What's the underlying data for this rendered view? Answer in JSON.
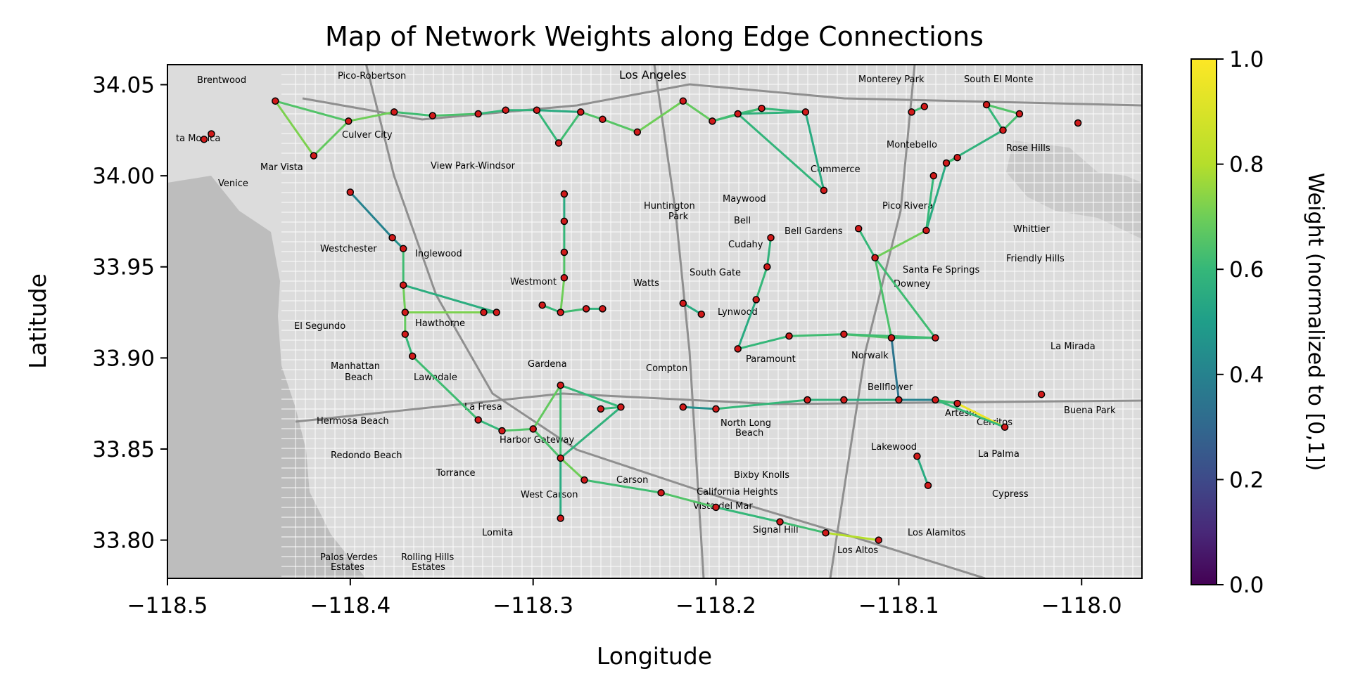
{
  "chart_data": {
    "type": "map",
    "title": "Map of Network Weights along Edge Connections",
    "xlabel": "Longitude",
    "ylabel": "Latitude",
    "xlim": [
      -118.5,
      -117.967
    ],
    "ylim": [
      33.779,
      34.061
    ],
    "xticks": [
      -118.5,
      -118.4,
      -118.3,
      -118.2,
      -118.1,
      -118.0
    ],
    "xtick_labels": [
      "−118.5",
      "−118.4",
      "−118.3",
      "−118.2",
      "−118.1",
      "−118.0"
    ],
    "yticks": [
      33.8,
      33.85,
      33.9,
      33.95,
      34.0,
      34.05
    ],
    "ytick_labels": [
      "33.80",
      "33.85",
      "33.90",
      "33.95",
      "34.00",
      "34.05"
    ],
    "colorbar": {
      "label": "Weight (normalized to [0,1])",
      "colormap": "viridis",
      "range": [
        0,
        1
      ],
      "ticks": [
        0.0,
        0.2,
        0.4,
        0.6,
        0.8,
        1.0
      ],
      "tick_labels": [
        "0.0",
        "0.2",
        "0.4",
        "0.6",
        "0.8",
        "1.0"
      ]
    },
    "nodes": [
      [
        -118.441,
        34.041
      ],
      [
        -118.42,
        34.011
      ],
      [
        -118.401,
        34.03
      ],
      [
        -118.376,
        34.035
      ],
      [
        -118.355,
        34.033
      ],
      [
        -118.33,
        34.034
      ],
      [
        -118.315,
        34.036
      ],
      [
        -118.298,
        34.036
      ],
      [
        -118.274,
        34.035
      ],
      [
        -118.286,
        34.018
      ],
      [
        -118.262,
        34.031
      ],
      [
        -118.243,
        34.024
      ],
      [
        -118.218,
        34.041
      ],
      [
        -118.202,
        34.03
      ],
      [
        -118.188,
        34.034
      ],
      [
        -118.175,
        34.037
      ],
      [
        -118.151,
        34.035
      ],
      [
        -118.141,
        33.992
      ],
      [
        -118.093,
        34.035
      ],
      [
        -118.086,
        34.038
      ],
      [
        -118.052,
        34.039
      ],
      [
        -118.034,
        34.034
      ],
      [
        -118.043,
        34.025
      ],
      [
        -118.002,
        34.029
      ],
      [
        -118.476,
        34.023
      ],
      [
        -118.48,
        34.02
      ],
      [
        -118.4,
        33.991
      ],
      [
        -118.377,
        33.966
      ],
      [
        -118.371,
        33.96
      ],
      [
        -118.371,
        33.94
      ],
      [
        -118.37,
        33.925
      ],
      [
        -118.37,
        33.913
      ],
      [
        -118.366,
        33.901
      ],
      [
        -118.32,
        33.925
      ],
      [
        -118.327,
        33.925
      ],
      [
        -118.295,
        33.929
      ],
      [
        -118.285,
        33.925
      ],
      [
        -118.271,
        33.927
      ],
      [
        -118.262,
        33.927
      ],
      [
        -118.283,
        33.99
      ],
      [
        -118.283,
        33.975
      ],
      [
        -118.283,
        33.958
      ],
      [
        -118.283,
        33.944
      ],
      [
        -118.218,
        33.93
      ],
      [
        -118.208,
        33.924
      ],
      [
        -118.33,
        33.866
      ],
      [
        -118.317,
        33.86
      ],
      [
        -118.3,
        33.861
      ],
      [
        -118.285,
        33.885
      ],
      [
        -118.285,
        33.845
      ],
      [
        -118.285,
        33.812
      ],
      [
        -118.252,
        33.873
      ],
      [
        -118.263,
        33.872
      ],
      [
        -118.218,
        33.873
      ],
      [
        -118.2,
        33.872
      ],
      [
        -118.15,
        33.877
      ],
      [
        -118.13,
        33.877
      ],
      [
        -118.1,
        33.877
      ],
      [
        -118.08,
        33.877
      ],
      [
        -118.068,
        33.875
      ],
      [
        -118.042,
        33.862
      ],
      [
        -118.022,
        33.88
      ],
      [
        -118.09,
        33.846
      ],
      [
        -118.084,
        33.83
      ],
      [
        -118.272,
        33.833
      ],
      [
        -118.23,
        33.826
      ],
      [
        -118.2,
        33.818
      ],
      [
        -118.165,
        33.81
      ],
      [
        -118.14,
        33.804
      ],
      [
        -118.111,
        33.8
      ],
      [
        -118.188,
        33.905
      ],
      [
        -118.16,
        33.912
      ],
      [
        -118.13,
        33.913
      ],
      [
        -118.104,
        33.911
      ],
      [
        -118.08,
        33.911
      ],
      [
        -118.17,
        33.966
      ],
      [
        -118.172,
        33.95
      ],
      [
        -118.178,
        33.932
      ],
      [
        -118.122,
        33.971
      ],
      [
        -118.113,
        33.955
      ],
      [
        -118.085,
        33.97
      ],
      [
        -118.074,
        34.007
      ],
      [
        -118.068,
        34.01
      ],
      [
        -118.081,
        34.0
      ]
    ],
    "edges": [
      {
        "from": 0,
        "to": 1,
        "weight": 0.72
      },
      {
        "from": 0,
        "to": 2,
        "weight": 0.65
      },
      {
        "from": 1,
        "to": 2,
        "weight": 0.68
      },
      {
        "from": 2,
        "to": 3,
        "weight": 0.7
      },
      {
        "from": 3,
        "to": 4,
        "weight": 0.62
      },
      {
        "from": 4,
        "to": 5,
        "weight": 0.64
      },
      {
        "from": 5,
        "to": 6,
        "weight": 0.6
      },
      {
        "from": 6,
        "to": 7,
        "weight": 0.58
      },
      {
        "from": 7,
        "to": 8,
        "weight": 0.55
      },
      {
        "from": 7,
        "to": 9,
        "weight": 0.6
      },
      {
        "from": 8,
        "to": 9,
        "weight": 0.62
      },
      {
        "from": 8,
        "to": 10,
        "weight": 0.65
      },
      {
        "from": 10,
        "to": 11,
        "weight": 0.66
      },
      {
        "from": 11,
        "to": 12,
        "weight": 0.7
      },
      {
        "from": 12,
        "to": 13,
        "weight": 0.68
      },
      {
        "from": 13,
        "to": 14,
        "weight": 0.63
      },
      {
        "from": 14,
        "to": 15,
        "weight": 0.61
      },
      {
        "from": 15,
        "to": 16,
        "weight": 0.6
      },
      {
        "from": 13,
        "to": 15,
        "weight": 0.62
      },
      {
        "from": 14,
        "to": 16,
        "weight": 0.58
      },
      {
        "from": 16,
        "to": 17,
        "weight": 0.55
      },
      {
        "from": 14,
        "to": 17,
        "weight": 0.59
      },
      {
        "from": 18,
        "to": 19,
        "weight": 0.62
      },
      {
        "from": 20,
        "to": 21,
        "weight": 0.65
      },
      {
        "from": 20,
        "to": 22,
        "weight": 0.6
      },
      {
        "from": 21,
        "to": 22,
        "weight": 0.63
      },
      {
        "from": 22,
        "to": 81,
        "weight": 0.58
      },
      {
        "from": 81,
        "to": 82,
        "weight": 0.62
      },
      {
        "from": 81,
        "to": 80,
        "weight": 0.55
      },
      {
        "from": 80,
        "to": 83,
        "weight": 0.6
      },
      {
        "from": 26,
        "to": 27,
        "weight": 0.4
      },
      {
        "from": 27,
        "to": 28,
        "weight": 0.45
      },
      {
        "from": 28,
        "to": 29,
        "weight": 0.62
      },
      {
        "from": 29,
        "to": 30,
        "weight": 0.7
      },
      {
        "from": 30,
        "to": 31,
        "weight": 0.68
      },
      {
        "from": 31,
        "to": 32,
        "weight": 0.6
      },
      {
        "from": 29,
        "to": 33,
        "weight": 0.56
      },
      {
        "from": 30,
        "to": 33,
        "weight": 0.6
      },
      {
        "from": 30,
        "to": 34,
        "weight": 0.72
      },
      {
        "from": 33,
        "to": 34,
        "weight": 0.58
      },
      {
        "from": 35,
        "to": 36,
        "weight": 0.6
      },
      {
        "from": 36,
        "to": 37,
        "weight": 0.62
      },
      {
        "from": 37,
        "to": 38,
        "weight": 0.58
      },
      {
        "from": 39,
        "to": 40,
        "weight": 0.55
      },
      {
        "from": 40,
        "to": 41,
        "weight": 0.6
      },
      {
        "from": 41,
        "to": 42,
        "weight": 0.65
      },
      {
        "from": 42,
        "to": 36,
        "weight": 0.7
      },
      {
        "from": 43,
        "to": 44,
        "weight": 0.55
      },
      {
        "from": 32,
        "to": 45,
        "weight": 0.62
      },
      {
        "from": 45,
        "to": 46,
        "weight": 0.6
      },
      {
        "from": 46,
        "to": 47,
        "weight": 0.65
      },
      {
        "from": 47,
        "to": 48,
        "weight": 0.68
      },
      {
        "from": 47,
        "to": 49,
        "weight": 0.64
      },
      {
        "from": 48,
        "to": 49,
        "weight": 0.62
      },
      {
        "from": 48,
        "to": 51,
        "weight": 0.6
      },
      {
        "from": 49,
        "to": 51,
        "weight": 0.58
      },
      {
        "from": 49,
        "to": 50,
        "weight": 0.55
      },
      {
        "from": 51,
        "to": 52,
        "weight": 0.6
      },
      {
        "from": 49,
        "to": 64,
        "weight": 0.7
      },
      {
        "from": 64,
        "to": 65,
        "weight": 0.62
      },
      {
        "from": 65,
        "to": 66,
        "weight": 0.65
      },
      {
        "from": 66,
        "to": 67,
        "weight": 0.6
      },
      {
        "from": 67,
        "to": 68,
        "weight": 0.62
      },
      {
        "from": 68,
        "to": 69,
        "weight": 0.8
      },
      {
        "from": 53,
        "to": 54,
        "weight": 0.45
      },
      {
        "from": 54,
        "to": 55,
        "weight": 0.6
      },
      {
        "from": 55,
        "to": 56,
        "weight": 0.58
      },
      {
        "from": 56,
        "to": 57,
        "weight": 0.55
      },
      {
        "from": 57,
        "to": 58,
        "weight": 0.4
      },
      {
        "from": 58,
        "to": 59,
        "weight": 0.62
      },
      {
        "from": 59,
        "to": 60,
        "weight": 0.95
      },
      {
        "from": 58,
        "to": 60,
        "weight": 0.6
      },
      {
        "from": 57,
        "to": 73,
        "weight": 0.35
      },
      {
        "from": 62,
        "to": 63,
        "weight": 0.55
      },
      {
        "from": 70,
        "to": 71,
        "weight": 0.6
      },
      {
        "from": 71,
        "to": 72,
        "weight": 0.62
      },
      {
        "from": 72,
        "to": 73,
        "weight": 0.65
      },
      {
        "from": 73,
        "to": 74,
        "weight": 0.6
      },
      {
        "from": 72,
        "to": 74,
        "weight": 0.62
      },
      {
        "from": 73,
        "to": 79,
        "weight": 0.64
      },
      {
        "from": 74,
        "to": 79,
        "weight": 0.62
      },
      {
        "from": 79,
        "to": 80,
        "weight": 0.7
      },
      {
        "from": 78,
        "to": 79,
        "weight": 0.6
      },
      {
        "from": 75,
        "to": 76,
        "weight": 0.58
      },
      {
        "from": 76,
        "to": 77,
        "weight": 0.6
      },
      {
        "from": 77,
        "to": 70,
        "weight": 0.55
      }
    ]
  }
}
